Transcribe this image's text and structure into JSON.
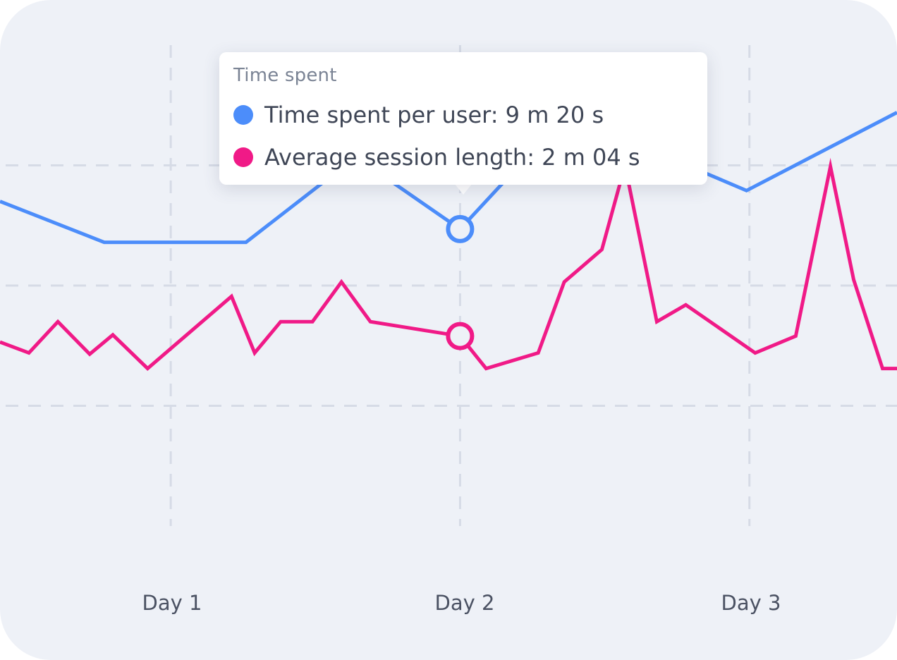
{
  "colors": {
    "background": "#eef1f7",
    "grid": "#d6dbe6",
    "time_per_user": "#4c8dfa",
    "session_length": "#f01a87"
  },
  "tooltip": {
    "title": "Time spent",
    "rows": [
      {
        "label": "Time spent per user: 9 m 20 s",
        "color": "#4c8dfa"
      },
      {
        "label": "Average session length: 2 m 04 s",
        "color": "#f01a87"
      }
    ]
  },
  "chart_data": {
    "type": "line",
    "x_tick_labels": [
      "Day 1",
      "Day 2",
      "Day 3"
    ],
    "x_tick_positions": [
      1,
      2,
      3
    ],
    "xlim": [
      0.41,
      3.51
    ],
    "ylim": [
      0,
      4
    ],
    "grid": true,
    "highlight_x": 2.0,
    "series": [
      {
        "name": "Time spent per user",
        "color": "#4c8dfa",
        "points": [
          [
            0.41,
            2.7
          ],
          [
            0.77,
            2.36
          ],
          [
            1.26,
            2.36
          ],
          [
            1.64,
            3.07
          ],
          [
            2.0,
            2.47
          ],
          [
            2.32,
            3.3
          ],
          [
            2.51,
            2.93
          ],
          [
            2.59,
            3.2
          ],
          [
            2.99,
            2.79
          ],
          [
            3.51,
            3.44
          ]
        ]
      },
      {
        "name": "Average session length",
        "color": "#f01a87",
        "points": [
          [
            0.41,
            1.53
          ],
          [
            0.51,
            1.44
          ],
          [
            0.61,
            1.7
          ],
          [
            0.72,
            1.43
          ],
          [
            0.8,
            1.59
          ],
          [
            0.92,
            1.31
          ],
          [
            1.21,
            1.91
          ],
          [
            1.29,
            1.44
          ],
          [
            1.38,
            1.7
          ],
          [
            1.49,
            1.7
          ],
          [
            1.59,
            2.03
          ],
          [
            1.69,
            1.7
          ],
          [
            2.0,
            1.58
          ],
          [
            2.09,
            1.31
          ],
          [
            2.27,
            1.44
          ],
          [
            2.36,
            2.03
          ],
          [
            2.49,
            2.3
          ],
          [
            2.57,
            3.0
          ],
          [
            2.68,
            1.7
          ],
          [
            2.78,
            1.84
          ],
          [
            3.02,
            1.44
          ],
          [
            3.16,
            1.58
          ],
          [
            3.28,
            2.99
          ],
          [
            3.36,
            2.05
          ],
          [
            3.46,
            1.31
          ],
          [
            3.51,
            1.31
          ]
        ]
      }
    ]
  }
}
